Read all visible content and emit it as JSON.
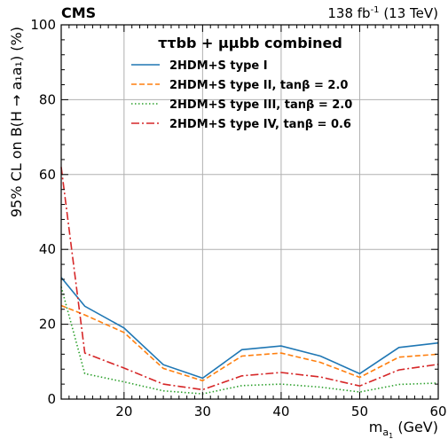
{
  "header": {
    "experiment": "CMS",
    "luminosity": "138 fb",
    "luminosity_exp": "-1",
    "energy": " (13 TeV)"
  },
  "chart_data": {
    "type": "line",
    "title": "ττbb + μμbb combined",
    "xlabel": "m",
    "xlabel_sub": "a",
    "xlabel_subsub": "1",
    "xlabel_unit": " (GeV)",
    "ylabel": "95% CL on B(H → a₁a₁) (%)",
    "xlim": [
      12,
      60
    ],
    "ylim": [
      0,
      100
    ],
    "xticks": [
      20,
      30,
      40,
      50,
      60
    ],
    "yticks": [
      0,
      20,
      40,
      60,
      80,
      100
    ],
    "grid": true,
    "legend_position": "top-center",
    "x": [
      12,
      15,
      20,
      25,
      30,
      35,
      40,
      45,
      50,
      55,
      60
    ],
    "series": [
      {
        "name": "2HDM+S type I",
        "color": "#1f77b4",
        "dash": "solid",
        "values": [
          32.5,
          24.8,
          19.0,
          9.2,
          5.6,
          13.2,
          14.2,
          11.5,
          6.8,
          13.8,
          15.0
        ]
      },
      {
        "name": "2HDM+S type II, tanβ = 2.0",
        "color": "#ff7f0e",
        "dash": "dashed",
        "values": [
          25.0,
          22.5,
          17.8,
          8.2,
          4.9,
          11.5,
          12.3,
          9.8,
          5.8,
          11.2,
          12.0
        ]
      },
      {
        "name": "2HDM+S type III, tanβ = 2.0",
        "color": "#2ca02c",
        "dash": "dotted",
        "values": [
          30.0,
          6.8,
          4.6,
          2.2,
          1.4,
          3.6,
          4.0,
          3.2,
          1.9,
          3.9,
          4.3
        ]
      },
      {
        "name": "2HDM+S type IV, tanβ = 0.6",
        "color": "#d62728",
        "dash": "dashdot",
        "values": [
          62.0,
          12.3,
          8.3,
          4.0,
          2.5,
          6.2,
          7.1,
          5.9,
          3.5,
          7.8,
          9.3
        ]
      }
    ]
  }
}
